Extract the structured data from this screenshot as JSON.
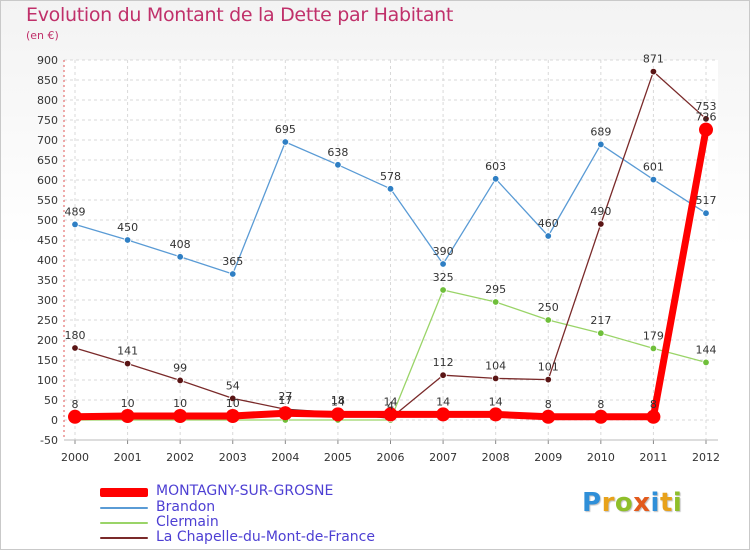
{
  "title": "Evolution du Montant de la Dette par Habitant",
  "unit": "(en €)",
  "brand": {
    "letters": [
      "P",
      "r",
      "o",
      "x",
      "i",
      "t",
      "i"
    ],
    "colors": [
      "#2f8fd8",
      "#e8a21a",
      "#8fbf2a",
      "#e25a1c",
      "#2f8fd8",
      "#e8a21a",
      "#8fbf2a"
    ]
  },
  "chart_data": {
    "type": "line",
    "x": [
      2000,
      2001,
      2002,
      2003,
      2004,
      2005,
      2006,
      2007,
      2008,
      2009,
      2010,
      2011,
      2012
    ],
    "ylim": [
      -50,
      900
    ],
    "yticks": [
      -50,
      0,
      50,
      100,
      150,
      200,
      250,
      300,
      350,
      400,
      450,
      500,
      550,
      600,
      650,
      700,
      750,
      800,
      850,
      900
    ],
    "grid": true,
    "legend_position": "bottom-left",
    "series": [
      {
        "name": "MONTAGNY-SUR-GROSNE",
        "color": "#ff0000",
        "values": [
          8,
          10,
          10,
          10,
          17,
          14,
          14,
          14,
          14,
          8,
          8,
          8,
          726
        ],
        "labels": [
          "8",
          "10",
          "10",
          "10",
          "17",
          "14",
          "14",
          "14",
          "14",
          "8",
          "8",
          "8",
          "726"
        ]
      },
      {
        "name": "Brandon",
        "color": "#5a9bd5",
        "values": [
          489,
          450,
          408,
          365,
          695,
          638,
          578,
          390,
          603,
          460,
          689,
          601,
          517
        ],
        "labels": [
          "489",
          "450",
          "408",
          "365",
          "695",
          "638",
          "578",
          "390",
          "603",
          "460",
          "689",
          "601",
          "517"
        ]
      },
      {
        "name": "Clermain",
        "color": "#9ad468",
        "values": [
          0,
          0,
          0,
          0,
          0,
          0,
          0,
          325,
          295,
          250,
          217,
          179,
          144
        ],
        "labels": [
          "0",
          "0",
          "0",
          "0",
          "0",
          "0",
          "0",
          "325",
          "295",
          "250",
          "217",
          "179",
          "144"
        ]
      },
      {
        "name": "La Chapelle-du-Mont-de-France",
        "color": "#7a2a2a",
        "values": [
          180,
          141,
          99,
          54,
          27,
          18,
          4,
          112,
          104,
          101,
          490,
          871,
          753
        ],
        "labels": [
          "180",
          "141",
          "99",
          "54",
          "27",
          "18",
          "4",
          "112",
          "104",
          "101",
          "490",
          "871",
          "753"
        ]
      }
    ]
  }
}
